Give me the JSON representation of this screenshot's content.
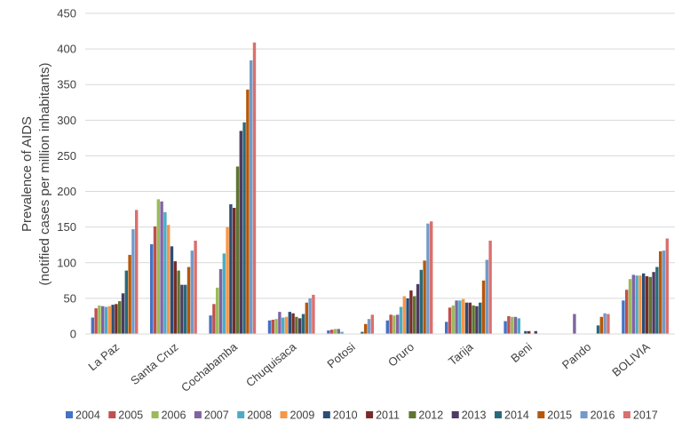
{
  "chart_data": {
    "type": "bar",
    "ylabel_lines": [
      "Prevalence of AIDS",
      "(notified cases per million inhabitants)"
    ],
    "ylim": [
      0,
      450
    ],
    "yticks": [
      0,
      50,
      100,
      150,
      200,
      250,
      300,
      350,
      400,
      450
    ],
    "grid": true,
    "legend_position": "bottom",
    "categories": [
      "La Paz",
      "Santa Cruz",
      "Cochabamba",
      "Chuquisaca",
      "Potosi",
      "Oruro",
      "Tarija",
      "Beni",
      "Pando",
      "BOLIVIA"
    ],
    "series": [
      {
        "name": "2004",
        "color": "#4472c4",
        "values": [
          23,
          126,
          26,
          19,
          5,
          19,
          17,
          18,
          0,
          47
        ]
      },
      {
        "name": "2005",
        "color": "#c0504d",
        "values": [
          36,
          151,
          42,
          20,
          6,
          27,
          37,
          25,
          0,
          62
        ]
      },
      {
        "name": "2006",
        "color": "#9bbb59",
        "values": [
          40,
          189,
          65,
          21,
          7,
          26,
          40,
          24,
          0,
          77
        ]
      },
      {
        "name": "2007",
        "color": "#8064a2",
        "values": [
          39,
          186,
          91,
          31,
          7,
          27,
          47,
          24,
          28,
          83
        ]
      },
      {
        "name": "2008",
        "color": "#4bacc6",
        "values": [
          38,
          171,
          113,
          23,
          3,
          38,
          47,
          22,
          0,
          82
        ]
      },
      {
        "name": "2009",
        "color": "#f79646",
        "values": [
          39,
          153,
          150,
          24,
          0,
          53,
          49,
          0,
          0,
          82
        ]
      },
      {
        "name": "2010",
        "color": "#2c4d75",
        "values": [
          41,
          123,
          182,
          31,
          0,
          50,
          44,
          4,
          0,
          85
        ]
      },
      {
        "name": "2011",
        "color": "#772c2a",
        "values": [
          42,
          102,
          177,
          29,
          0,
          61,
          44,
          4,
          0,
          81
        ]
      },
      {
        "name": "2012",
        "color": "#5f7530",
        "values": [
          46,
          89,
          235,
          24,
          0,
          53,
          40,
          0,
          0,
          80
        ]
      },
      {
        "name": "2013",
        "color": "#4d3b62",
        "values": [
          57,
          69,
          285,
          22,
          0,
          70,
          39,
          4,
          0,
          87
        ]
      },
      {
        "name": "2014",
        "color": "#276a7c",
        "values": [
          89,
          69,
          297,
          28,
          3,
          90,
          44,
          0,
          12,
          94
        ]
      },
      {
        "name": "2015",
        "color": "#b65708",
        "values": [
          111,
          94,
          343,
          44,
          14,
          103,
          75,
          0,
          24,
          116
        ]
      },
      {
        "name": "2016",
        "color": "#729aca",
        "values": [
          147,
          117,
          384,
          50,
          21,
          155,
          104,
          0,
          29,
          117
        ]
      },
      {
        "name": "2017",
        "color": "#d9706d",
        "values": [
          174,
          131,
          409,
          55,
          27,
          158,
          131,
          0,
          28,
          134
        ]
      }
    ]
  }
}
